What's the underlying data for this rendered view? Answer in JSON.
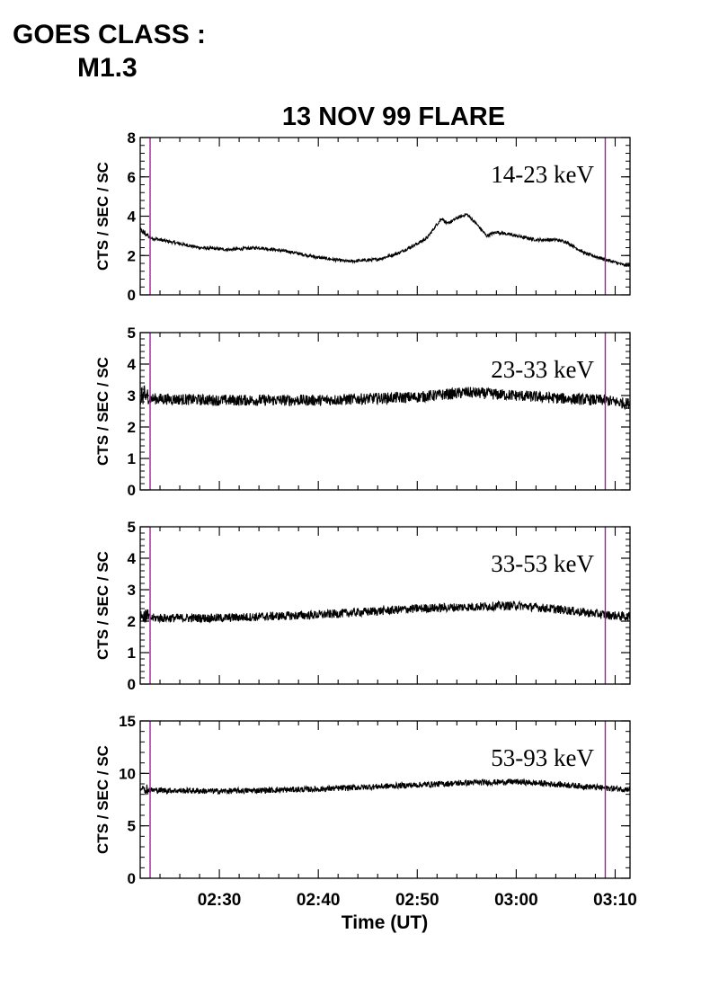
{
  "header": {
    "goes_label": "GOES CLASS :",
    "goes_value": "M1.3"
  },
  "colors": {
    "marker": "#a0209a",
    "trace": "#000000",
    "axes": "#000000"
  },
  "chart_data": [
    {
      "type": "line",
      "title": "13 NOV 99 FLARE",
      "band_label": "14-23 keV",
      "ylabel": "CTS / SEC / SC",
      "ylim": [
        0,
        8
      ],
      "yticks": [
        0,
        2,
        4,
        6,
        8
      ],
      "noise": 0.08,
      "x": [
        "02:22",
        "02:23",
        "02:25",
        "02:28",
        "02:31",
        "02:34",
        "02:37",
        "02:40",
        "02:43",
        "02:46",
        "02:48",
        "02:50",
        "02:51",
        "02:52",
        "02:52.5",
        "02:53",
        "02:54",
        "02:55",
        "02:56",
        "02:57",
        "02:58",
        "03:00",
        "03:02",
        "03:04",
        "03:05",
        "03:07",
        "03:09",
        "03:11"
      ],
      "values": [
        3.3,
        2.9,
        2.7,
        2.4,
        2.3,
        2.4,
        2.2,
        1.9,
        1.7,
        1.8,
        2.1,
        2.6,
        2.9,
        3.6,
        3.9,
        3.6,
        3.9,
        4.1,
        3.6,
        3.0,
        3.2,
        3.0,
        2.8,
        2.8,
        2.7,
        2.1,
        1.8,
        1.5
      ]
    },
    {
      "type": "line",
      "title": "",
      "band_label": "23-33 keV",
      "ylabel": "CTS / SEC / SC",
      "ylim": [
        0,
        5
      ],
      "yticks": [
        0,
        1,
        2,
        3,
        4,
        5
      ],
      "noise": 0.18,
      "x": [
        "02:22",
        "02:23",
        "02:30",
        "02:40",
        "02:50",
        "02:55",
        "03:00",
        "03:05",
        "03:09",
        "03:11"
      ],
      "values": [
        3.0,
        2.9,
        2.85,
        2.85,
        2.95,
        3.1,
        3.0,
        2.9,
        2.85,
        2.75
      ]
    },
    {
      "type": "line",
      "title": "",
      "band_label": "33-53 keV",
      "ylabel": "CTS / SEC / SC",
      "ylim": [
        0,
        5
      ],
      "yticks": [
        0,
        1,
        2,
        3,
        4,
        5
      ],
      "noise": 0.14,
      "x": [
        "02:22",
        "02:23",
        "02:30",
        "02:40",
        "02:50",
        "03:00",
        "03:05",
        "03:09",
        "03:11"
      ],
      "values": [
        2.2,
        2.1,
        2.1,
        2.2,
        2.4,
        2.5,
        2.35,
        2.2,
        2.15
      ]
    },
    {
      "type": "line",
      "title": "",
      "band_label": "53-93 keV",
      "ylabel": "CTS / SEC / SC",
      "ylim": [
        0,
        15
      ],
      "yticks": [
        0,
        5,
        10,
        15
      ],
      "noise": 0.28,
      "x": [
        "02:22",
        "02:23",
        "02:30",
        "02:40",
        "02:50",
        "02:55",
        "03:00",
        "03:05",
        "03:09",
        "03:11"
      ],
      "values": [
        8.7,
        8.4,
        8.3,
        8.5,
        8.9,
        9.1,
        9.2,
        8.9,
        8.6,
        8.5
      ]
    }
  ],
  "x_axis": {
    "label": "Time (UT)",
    "range": [
      "02:22",
      "03:11.5"
    ],
    "major_ticks": [
      "02:30",
      "02:40",
      "02:50",
      "03:00",
      "03:10"
    ],
    "minor_tick_step_min": 2,
    "markers": [
      "02:23",
      "03:09"
    ]
  }
}
